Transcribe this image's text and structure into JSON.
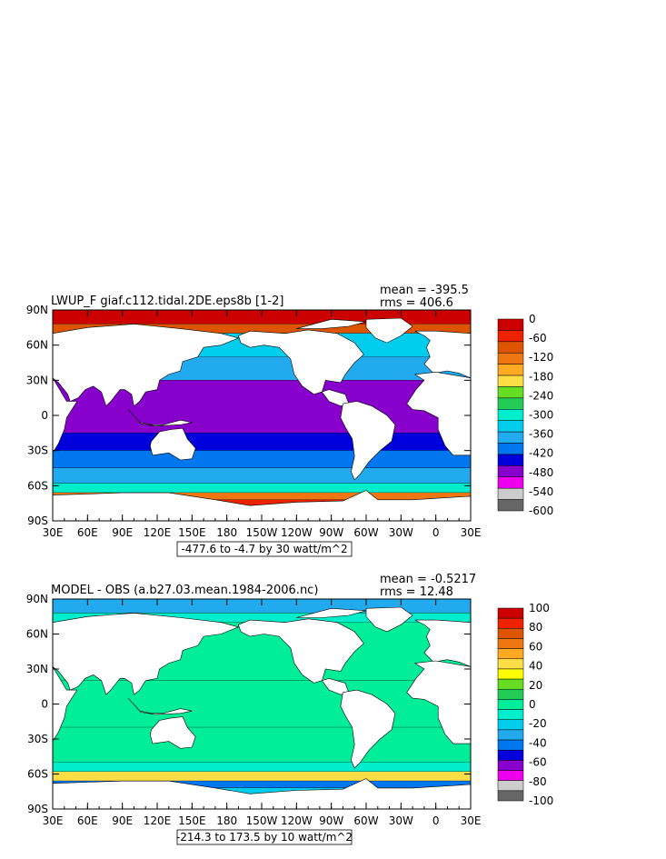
{
  "chart_data": [
    {
      "type": "heatmap",
      "title": "LWUP_F giaf.c112.tidal.2DE.eps8b [1-2]",
      "stats": {
        "mean": "mean = -395.5",
        "rms": "rms = 406.6"
      },
      "range_label": "-477.6 to -4.7 by 30 watt/m^2",
      "x_ticks": [
        "30E",
        "60E",
        "90E",
        "120E",
        "150E",
        "180",
        "150W",
        "120W",
        "90W",
        "60W",
        "30W",
        "0",
        "30E"
      ],
      "y_ticks": [
        "90N",
        "60N",
        "30N",
        "0",
        "30S",
        "60S",
        "90S"
      ],
      "colorbar": {
        "labels": [
          "0",
          "-60",
          "-120",
          "-180",
          "-240",
          "-300",
          "-360",
          "-420",
          "-480",
          "-540",
          "-600"
        ],
        "colors": [
          "#cc0000",
          "#ee2200",
          "#dd5500",
          "#ee7711",
          "#ffaa22",
          "#ffdd44",
          "#66dd22",
          "#22cc55",
          "#00eecc",
          "#00ccee",
          "#22aaee",
          "#0077ee",
          "#0000dd",
          "#8800cc",
          "#ee00ee",
          "#cccccc",
          "#666666"
        ]
      },
      "zones": [
        {
          "lat": [
            78,
            90
          ],
          "value": -10
        },
        {
          "lat": [
            70,
            78
          ],
          "value": -90
        },
        {
          "lat": [
            50,
            70
          ],
          "value": -330
        },
        {
          "lat": [
            30,
            50
          ],
          "value": -360
        },
        {
          "lat": [
            -15,
            30
          ],
          "value": -460
        },
        {
          "lat": [
            -30,
            -15
          ],
          "value": -430
        },
        {
          "lat": [
            -45,
            -30
          ],
          "value": -395
        },
        {
          "lat": [
            -58,
            -45
          ],
          "value": -365
        },
        {
          "lat": [
            -66,
            -58
          ],
          "value": -310
        },
        {
          "lat": [
            -72,
            -66
          ],
          "value": -140
        },
        {
          "lat": [
            -80,
            -72
          ],
          "value": -60
        }
      ]
    },
    {
      "type": "heatmap",
      "title": "MODEL - OBS (a.b27.03.mean.1984-2006.nc)",
      "stats": {
        "mean": "mean = -0.5217",
        "rms": "rms = 12.48"
      },
      "range_label": "-214.3 to 173.5 by 10 watt/m^2",
      "x_ticks": [
        "30E",
        "60E",
        "90E",
        "120E",
        "150E",
        "180",
        "150W",
        "120W",
        "90W",
        "60W",
        "30W",
        "0",
        "30E"
      ],
      "y_ticks": [
        "90N",
        "60N",
        "30N",
        "0",
        "30S",
        "60S",
        "90S"
      ],
      "colorbar": {
        "labels": [
          "100",
          "80",
          "60",
          "40",
          "20",
          "0",
          "-20",
          "-40",
          "-60",
          "-80",
          "-100"
        ],
        "colors": [
          "#cc0000",
          "#ee2200",
          "#dd5500",
          "#ee7711",
          "#ffaa22",
          "#ffdd44",
          "#ffff00",
          "#66dd22",
          "#22cc55",
          "#00ee99",
          "#00eecc",
          "#00ccee",
          "#22aaee",
          "#0077ee",
          "#0000dd",
          "#8800cc",
          "#ee00ee",
          "#cccccc",
          "#666666"
        ]
      },
      "zones": [
        {
          "lat": [
            78,
            90
          ],
          "value": -30
        },
        {
          "lat": [
            70,
            78
          ],
          "value": -15
        },
        {
          "lat": [
            20,
            70
          ],
          "value": -5
        },
        {
          "lat": [
            -20,
            20
          ],
          "value": 2
        },
        {
          "lat": [
            -50,
            -20
          ],
          "value": 0
        },
        {
          "lat": [
            -58,
            -50
          ],
          "value": -10
        },
        {
          "lat": [
            -66,
            -58
          ],
          "value": 40
        },
        {
          "lat": [
            -72,
            -66
          ],
          "value": -40
        },
        {
          "lat": [
            -80,
            -72
          ],
          "value": -20
        }
      ]
    }
  ]
}
